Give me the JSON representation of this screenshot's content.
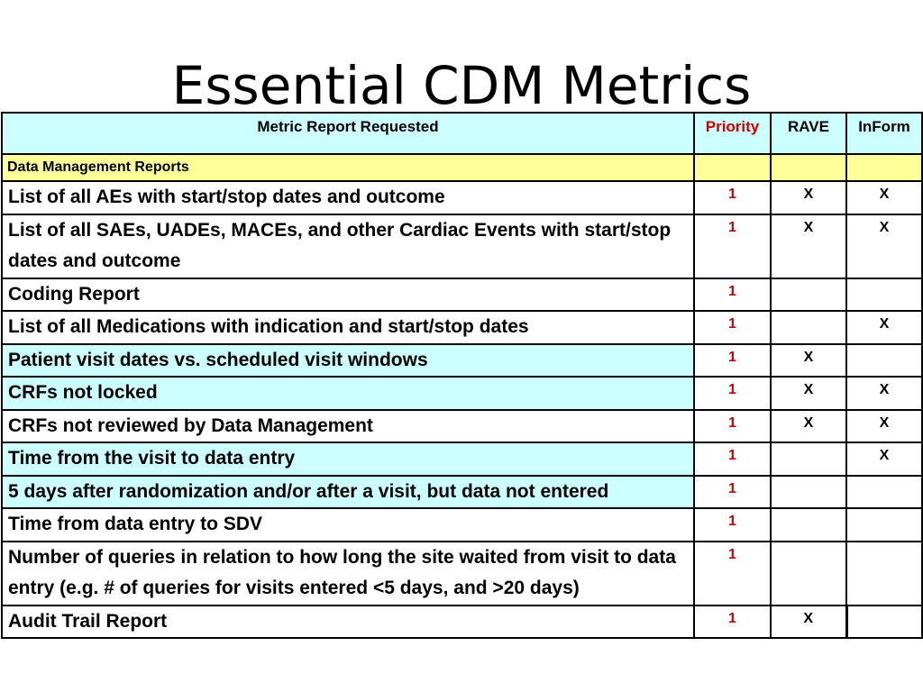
{
  "title": "Essential CDM Metrics",
  "table": {
    "headers": {
      "metric": "Metric Report Requested",
      "priority": "Priority",
      "rave": "RAVE",
      "inform": "InForm"
    },
    "section": "Data Management Reports",
    "colors": {
      "highlight": "#ccffff",
      "section": "#ffff99",
      "priority_text": "#cc0000"
    },
    "rows": [
      {
        "metric": "List of all AEs with start/stop dates and outcome",
        "priority": "1",
        "rave": "X",
        "inform": "X",
        "highlight": false
      },
      {
        "metric": "List of all SAEs, UADEs, MACEs, and other Cardiac Events with start/stop dates and outcome",
        "priority": "1",
        "rave": "X",
        "inform": "X",
        "highlight": false
      },
      {
        "metric": "Coding Report",
        "priority": "1",
        "rave": "",
        "inform": "",
        "highlight": false
      },
      {
        "metric": "List of all Medications with indication and start/stop dates",
        "priority": "1",
        "rave": "",
        "inform": "X",
        "highlight": false
      },
      {
        "metric": "Patient visit dates vs. scheduled visit windows",
        "priority": "1",
        "rave": "X",
        "inform": "",
        "highlight": true
      },
      {
        "metric": "CRFs not locked",
        "priority": "1",
        "rave": "X",
        "inform": "X",
        "highlight": true
      },
      {
        "metric": "CRFs not reviewed by Data Management",
        "priority": "1",
        "rave": "X",
        "inform": "X",
        "highlight": false
      },
      {
        "metric": "Time from the visit to data entry",
        "priority": "1",
        "rave": "",
        "inform": "X",
        "highlight": true
      },
      {
        "metric": "5 days after randomization and/or after a visit, but data not entered",
        "priority": "1",
        "rave": "",
        "inform": "",
        "highlight": true
      },
      {
        "metric": "Time from data entry to SDV",
        "priority": "1",
        "rave": "",
        "inform": "",
        "highlight": false
      },
      {
        "metric": "Number of queries in relation to how long the site waited from visit to data entry (e.g. # of queries for visits entered <5 days, and >20 days)",
        "priority": "1",
        "rave": "",
        "inform": "",
        "highlight": false
      },
      {
        "metric": "Audit Trail Report",
        "priority": "1",
        "rave": "X",
        "inform": "",
        "highlight": false
      }
    ]
  }
}
